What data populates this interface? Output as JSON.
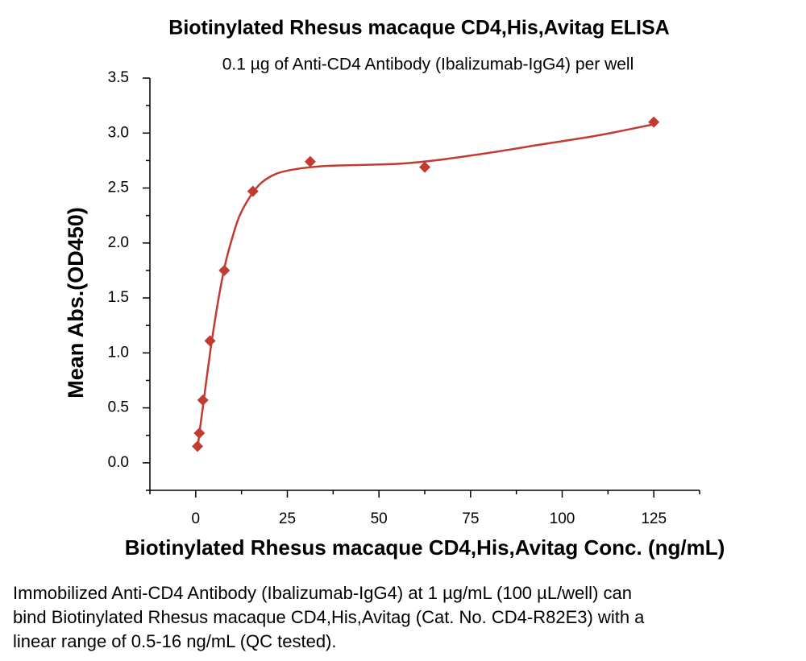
{
  "chart_data": {
    "type": "scatter",
    "title": "Biotinylated Rhesus macaque CD4,His,Avitag ELISA",
    "subtitle": "0.1 µg of Anti-CD4 Antibody (Ibalizumab-IgG4) per well",
    "x_label": "Biotinylated Rhesus macaque CD4,His,Avitag Conc. (ng/mL)",
    "y_label": "Mean Abs.(OD450)",
    "color": "#c23b32",
    "x": [
      0.49,
      0.98,
      1.95,
      3.9,
      7.8,
      15.6,
      31.25,
      62.5,
      125
    ],
    "values": [
      0.15,
      0.27,
      0.57,
      1.11,
      1.75,
      2.47,
      2.74,
      2.69,
      3.1
    ],
    "fit": {
      "x": [
        0.5,
        1,
        2,
        4,
        6,
        8,
        10,
        12,
        15,
        18,
        22,
        27,
        35,
        45,
        55,
        65,
        80,
        95,
        110,
        125
      ],
      "values": [
        0.12,
        0.27,
        0.52,
        1.02,
        1.45,
        1.8,
        2.05,
        2.25,
        2.43,
        2.55,
        2.63,
        2.67,
        2.7,
        2.71,
        2.72,
        2.75,
        2.82,
        2.9,
        2.98,
        3.08
      ]
    },
    "xlim": [
      -12.5,
      137.5
    ],
    "ylim": [
      -0.25,
      3.5
    ],
    "xticks": [
      0,
      25,
      50,
      75,
      100,
      125
    ],
    "yticks": [
      {
        "value": 0,
        "label": "0.0"
      },
      0.5,
      {
        "value": 1,
        "label": "1.0"
      },
      1.5,
      {
        "value": 2,
        "label": "2.0"
      },
      2.5,
      {
        "value": 3,
        "label": "3.0"
      },
      3.5
    ],
    "xminor_ticks": [
      -12.5,
      12.5,
      37.5,
      62.5,
      87.5,
      112.5,
      137.5
    ],
    "yminor_ticks": [
      -0.25,
      0.25,
      0.75,
      1.25,
      1.75,
      2.25,
      2.75,
      3.25
    ]
  },
  "caption": "Immobilized Anti-CD4 Antibody (Ibalizumab-IgG4) at 1 µg/mL (100 µL/well) can bind Biotinylated Rhesus macaque CD4,His,Avitag (Cat. No. CD4-R82E3) with a linear range of 0.5-16 ng/mL (QC tested)."
}
